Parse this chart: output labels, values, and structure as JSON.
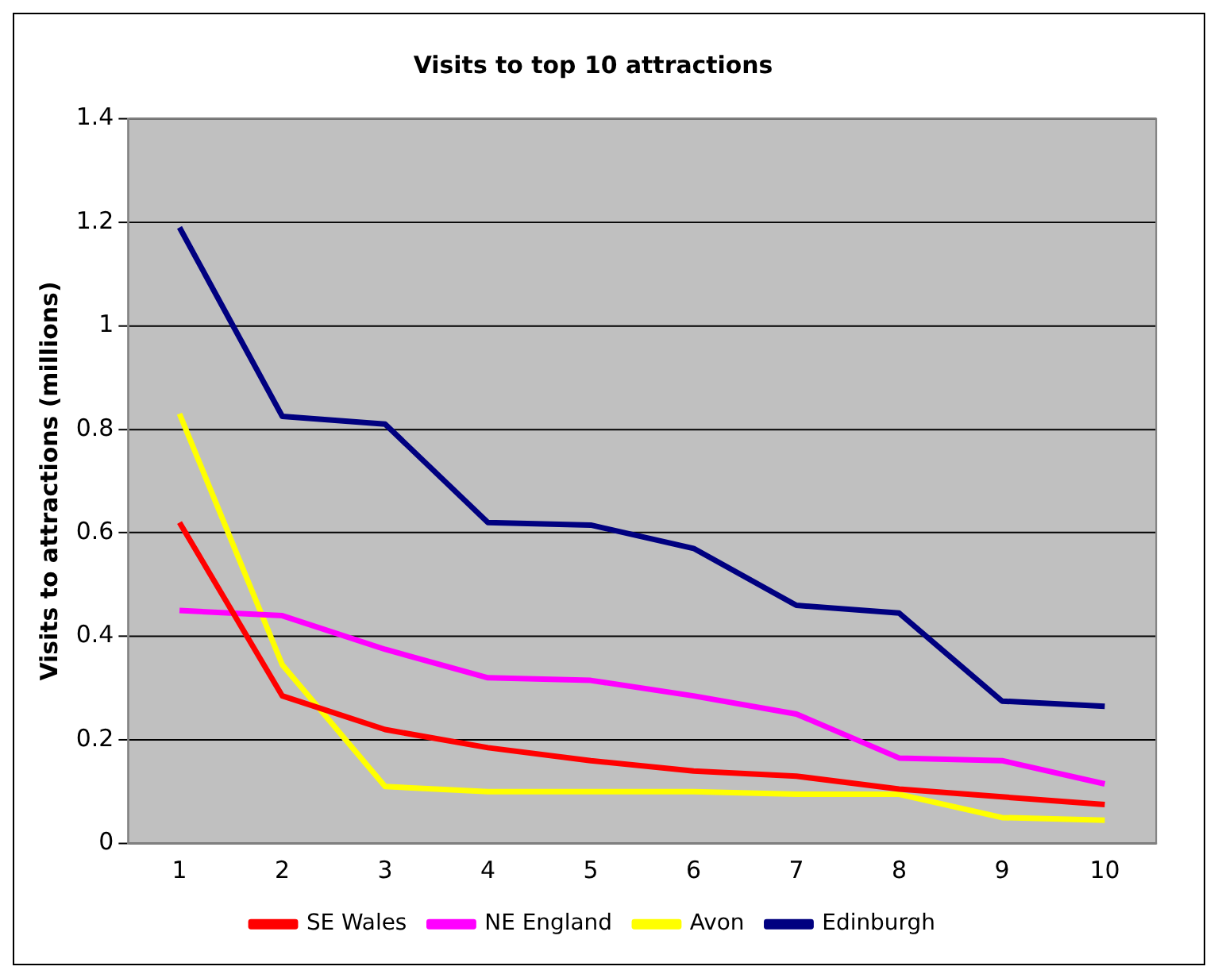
{
  "chart_data": {
    "type": "line",
    "title": "Visits to top 10 attractions",
    "ylabel": "Visits to attractions (millions)",
    "categories": [
      "1",
      "2",
      "3",
      "4",
      "5",
      "6",
      "7",
      "8",
      "9",
      "10"
    ],
    "series": [
      {
        "name": "SE Wales",
        "color": "#ff0000",
        "values": [
          0.62,
          0.285,
          0.22,
          0.185,
          0.16,
          0.14,
          0.13,
          0.105,
          0.09,
          0.075
        ]
      },
      {
        "name": "NE England",
        "color": "#ff00ff",
        "values": [
          0.45,
          0.44,
          0.375,
          0.32,
          0.315,
          0.285,
          0.25,
          0.165,
          0.16,
          0.115
        ]
      },
      {
        "name": "Avon",
        "color": "#ffff00",
        "values": [
          0.83,
          0.345,
          0.11,
          0.1,
          0.1,
          0.1,
          0.095,
          0.095,
          0.05,
          0.045
        ]
      },
      {
        "name": "Edinburgh",
        "color": "#000080",
        "values": [
          1.19,
          0.825,
          0.81,
          0.62,
          0.615,
          0.57,
          0.46,
          0.445,
          0.275,
          0.265
        ]
      }
    ],
    "ylim": [
      0,
      1.4
    ],
    "yticks": [
      0,
      0.2,
      0.4,
      0.6,
      0.8,
      1,
      1.2,
      1.4
    ],
    "grid": "y",
    "legend": "bottom",
    "marker": "none",
    "line_style": "solid"
  }
}
